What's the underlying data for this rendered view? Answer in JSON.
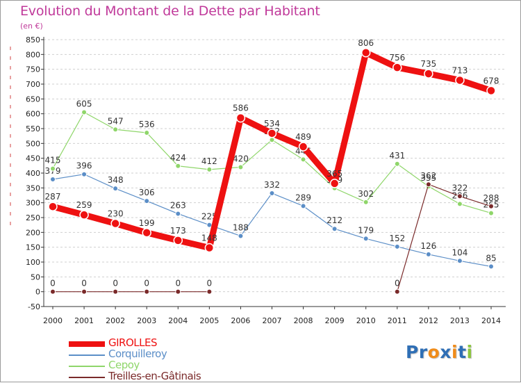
{
  "title": "Evolution du Montant de la Dette par Habitant",
  "subtitle": "(en €)",
  "logo": {
    "text": "Proxiti",
    "letters": [
      "P",
      "r",
      "o",
      "x",
      "i",
      "t",
      "i"
    ],
    "colors": [
      "#2f6fb5",
      "#2f6fb5",
      "#f08c1a",
      "#2f6fb5",
      "#f08c1a",
      "#2f6fb5",
      "#8dc63f"
    ]
  },
  "chart_data": {
    "type": "line",
    "categories": [
      "2000",
      "2001",
      "2002",
      "2003",
      "2004",
      "2005",
      "2006",
      "2007",
      "2008",
      "2009",
      "2010",
      "2011",
      "2012",
      "2013",
      "2014"
    ],
    "ylim": [
      -50,
      850
    ],
    "yticks": [
      -50,
      0,
      50,
      100,
      150,
      200,
      250,
      300,
      350,
      400,
      450,
      500,
      550,
      600,
      650,
      700,
      750,
      800,
      850
    ],
    "grid": "horizontal-dashed",
    "legend_position": "bottom-left",
    "series": [
      {
        "name": "Corquilleroy",
        "color": "#5b8ec7",
        "values": [
          379,
          396,
          348,
          306,
          263,
          225,
          188,
          332,
          289,
          212,
          179,
          152,
          126,
          104,
          85
        ]
      },
      {
        "name": "Cepoy",
        "color": "#8fd66a",
        "values": [
          415,
          605,
          547,
          536,
          424,
          412,
          420,
          512,
          446,
          349,
          302,
          431,
          355,
          296,
          265
        ]
      },
      {
        "name": "Treilles-en-Gâtinais",
        "color": "#7a2a2a",
        "values": [
          0,
          0,
          0,
          0,
          0,
          0,
          null,
          null,
          null,
          null,
          null,
          0,
          362,
          322,
          288
        ]
      },
      {
        "name": "GIROLLES",
        "color": "#ee1111",
        "values": [
          287,
          259,
          230,
          199,
          173,
          148,
          586,
          534,
          489,
          365,
          806,
          756,
          735,
          713,
          678
        ]
      }
    ]
  }
}
